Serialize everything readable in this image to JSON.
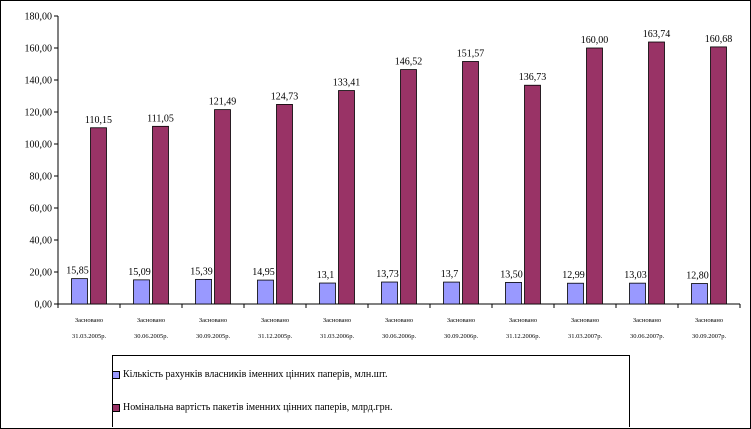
{
  "chart_data": {
    "type": "bar",
    "title": "",
    "xlabel": "",
    "ylabel": "",
    "ylim": [
      0,
      180
    ],
    "ytick_step": 20,
    "ytick_labels": [
      "0,00",
      "20,00",
      "40,00",
      "60,00",
      "80,00",
      "100,00",
      "120,00",
      "140,00",
      "160,00",
      "180,00"
    ],
    "grid": false,
    "legend_position": "bottom",
    "categories": [
      [
        "Засновано",
        "31.03.2005р."
      ],
      [
        "Засновано",
        "30.06.2005р."
      ],
      [
        "Засновано",
        "30.09.2005р."
      ],
      [
        "Засновано",
        "31.12.2005р."
      ],
      [
        "Засновано",
        "31.03.2006р."
      ],
      [
        "Засновано",
        "30.06.2006р."
      ],
      [
        "Засновано",
        "30.09.2006р."
      ],
      [
        "Засновано",
        "31.12.2006р."
      ],
      [
        "Засновано",
        "31.03.2007р."
      ],
      [
        "Засновано",
        "30.06.2007р."
      ],
      [
        "Засновано",
        "30.09.2007р."
      ]
    ],
    "series": [
      {
        "name": "Кількість рахунків власників іменних цінних паперів, млн.шт.",
        "color": "#9999ff",
        "values": [
          15.85,
          15.09,
          15.39,
          14.95,
          13.1,
          13.73,
          13.7,
          13.5,
          12.99,
          13.03,
          12.8
        ],
        "labels": [
          "15,85",
          "15,09",
          "15,39",
          "14,95",
          "13,1",
          "13,73",
          "13,7",
          "13,50",
          "12,99",
          "13,03",
          "12,80"
        ]
      },
      {
        "name": "Номінальна вартість пакетів іменних цінних паперів, млрд.грн.",
        "color": "#993366",
        "values": [
          110.15,
          111.05,
          121.49,
          124.73,
          133.41,
          146.52,
          151.57,
          136.73,
          160.0,
          163.74,
          160.68
        ],
        "labels": [
          "110,15",
          "111,05",
          "121,49",
          "124,73",
          "133,41",
          "146,52",
          "151,57",
          "136,73",
          "160,00",
          "163,74",
          "160,68"
        ]
      }
    ]
  }
}
